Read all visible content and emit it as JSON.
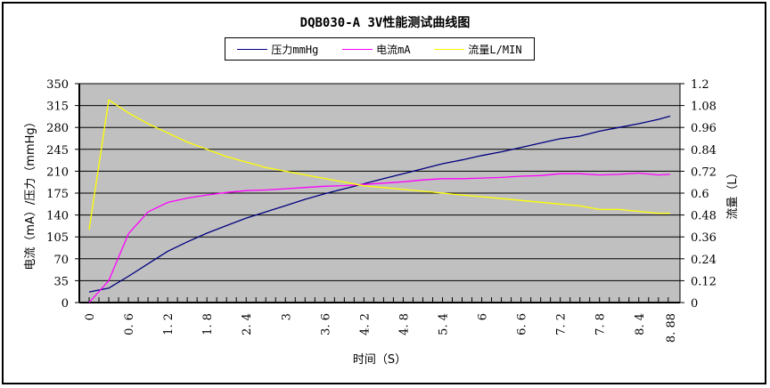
{
  "chart_data": {
    "type": "line",
    "title": "DQB030-A 3V性能测试曲线图",
    "xlabel": "时间（S）",
    "ylabel": "电流（mA）/压力（mmHg）",
    "y2label": "流量（L）",
    "ylim": [
      0,
      350
    ],
    "y2lim": [
      0,
      1.2
    ],
    "yticks": [
      "0",
      "35",
      "70",
      "105",
      "140",
      "175",
      "210",
      "245",
      "280",
      "315",
      "350"
    ],
    "y2ticks": [
      "0",
      "0.12",
      "0.24",
      "0.36",
      "0.48",
      "0.6",
      "0.72",
      "0.84",
      "0.96",
      "1.08",
      "1.2"
    ],
    "xticks": [
      "0",
      "0.6",
      "1.2",
      "1.8",
      "2.4",
      "3",
      "3.6",
      "4.2",
      "4.8",
      "5.4",
      "6",
      "6.6",
      "7.2",
      "7.8",
      "8.4",
      "8.88"
    ],
    "grid": true,
    "legend_position": "top",
    "x": [
      0,
      0.3,
      0.6,
      0.9,
      1.2,
      1.5,
      1.8,
      2.1,
      2.4,
      2.7,
      3.0,
      3.3,
      3.6,
      3.9,
      4.2,
      4.5,
      4.8,
      5.1,
      5.4,
      5.7,
      6.0,
      6.3,
      6.6,
      6.9,
      7.2,
      7.5,
      7.8,
      8.1,
      8.4,
      8.7,
      8.88
    ],
    "series": [
      {
        "name": "压力mmHg",
        "axis": "left",
        "color": "#000080",
        "values": [
          17,
          23,
          42,
          62,
          82,
          97,
          111,
          123,
          135,
          145,
          155,
          165,
          174,
          182,
          190,
          198,
          206,
          214,
          222,
          228,
          235,
          241,
          248,
          255,
          262,
          266,
          274,
          280,
          286,
          293,
          298
        ]
      },
      {
        "name": "电流mA",
        "axis": "left",
        "color": "#FF00FF",
        "values": [
          0,
          35,
          110,
          145,
          160,
          167,
          172,
          176,
          179,
          180,
          182,
          184,
          186,
          187,
          189,
          191,
          193,
          196,
          198,
          198,
          199,
          200,
          202,
          203,
          206,
          206,
          204,
          205,
          207,
          204,
          205
        ]
      },
      {
        "name": "流量L/MIN",
        "axis": "right",
        "color": "#FFFF00",
        "values": [
          0.4,
          1.11,
          1.04,
          0.98,
          0.93,
          0.88,
          0.84,
          0.8,
          0.77,
          0.74,
          0.72,
          0.7,
          0.68,
          0.66,
          0.64,
          0.63,
          0.62,
          0.61,
          0.6,
          0.59,
          0.58,
          0.57,
          0.56,
          0.55,
          0.54,
          0.53,
          0.51,
          0.51,
          0.5,
          0.49,
          0.49
        ]
      }
    ]
  },
  "legend": {
    "pressure": "压力mmHg",
    "current": "电流mA",
    "flow": "流量L/MIN"
  },
  "colors": {
    "plot_bg": "#C0C0C0",
    "pressure": "#000080",
    "current": "#FF00FF",
    "flow": "#FFFF00"
  }
}
